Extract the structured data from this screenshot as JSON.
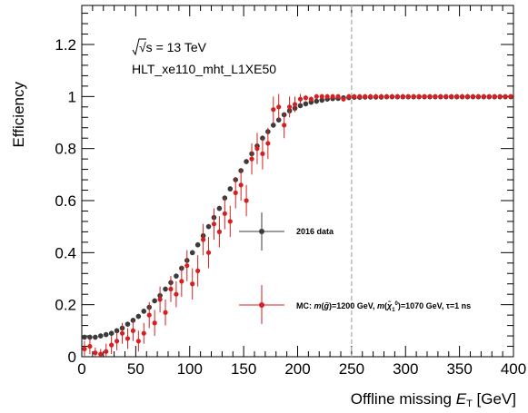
{
  "chart_data": {
    "type": "scatter",
    "xlabel_main": "Offline missing",
    "xlabel_sym": "E",
    "xlabel_sub": "T",
    "xlabel_unit": "[GeV]",
    "ylabel": "Efficiency",
    "xlim": [
      0,
      400
    ],
    "ylim": [
      0,
      1.35
    ],
    "x_ticks": [
      0,
      50,
      100,
      150,
      200,
      250,
      300,
      350,
      400
    ],
    "x_tick_labels": [
      "0",
      "50",
      "100",
      "150",
      "200",
      "250",
      "300",
      "350",
      "400"
    ],
    "y_ticks": [
      0,
      0.2,
      0.4,
      0.6,
      0.8,
      1,
      1.2
    ],
    "y_tick_labels": [
      "0",
      "0.2",
      "0.4",
      "0.6",
      "0.8",
      "1",
      "1.2"
    ],
    "annotations": {
      "energy": "√s = 13 TeV",
      "trigger": "HLT_xe110_mht_L1XE50"
    },
    "vertical_line": {
      "x": 250,
      "style": "dashed",
      "color": "#aaaaaa"
    },
    "legend": [
      {
        "label": "2016 data"
      },
      {
        "label": "MC: m(g̃)=1200 GeV, m(χ̃₁⁰)=1070 GeV, τ=1 ns"
      }
    ],
    "series": [
      {
        "name": "2016 data",
        "color": "#3b3b3b",
        "x": [
          2.5,
          7.5,
          12.5,
          17.5,
          22.5,
          27.5,
          32.5,
          37.5,
          42.5,
          47.5,
          52.5,
          57.5,
          62.5,
          67.5,
          72.5,
          77.5,
          82.5,
          87.5,
          92.5,
          97.5,
          102.5,
          107.5,
          112.5,
          117.5,
          122.5,
          127.5,
          132.5,
          137.5,
          142.5,
          147.5,
          152.5,
          157.5,
          162.5,
          167.5,
          172.5,
          177.5,
          182.5,
          187.5,
          192.5,
          197.5,
          202.5,
          207.5,
          212.5,
          217.5,
          222.5,
          227.5,
          232.5,
          237.5,
          242.5,
          247.5,
          252.5,
          257.5,
          262.5,
          267.5,
          272.5,
          277.5,
          282.5,
          287.5,
          292.5,
          297.5,
          302.5,
          307.5,
          312.5,
          317.5,
          322.5,
          327.5,
          332.5,
          337.5,
          342.5,
          347.5,
          352.5,
          357.5,
          362.5,
          367.5,
          372.5,
          377.5,
          382.5,
          387.5,
          392.5,
          397.5
        ],
        "y": [
          0.075,
          0.075,
          0.075,
          0.08,
          0.085,
          0.09,
          0.1,
          0.11,
          0.125,
          0.14,
          0.155,
          0.175,
          0.19,
          0.215,
          0.235,
          0.26,
          0.285,
          0.31,
          0.34,
          0.37,
          0.4,
          0.43,
          0.465,
          0.5,
          0.535,
          0.57,
          0.61,
          0.645,
          0.68,
          0.715,
          0.75,
          0.78,
          0.81,
          0.84,
          0.865,
          0.89,
          0.91,
          0.93,
          0.945,
          0.955,
          0.965,
          0.972,
          0.978,
          0.982,
          0.986,
          0.99,
          0.992,
          0.993,
          0.995,
          0.996,
          0.997,
          0.997,
          0.998,
          0.998,
          0.998,
          0.998,
          0.999,
          0.999,
          0.999,
          0.999,
          0.999,
          0.999,
          0.999,
          0.999,
          0.999,
          0.999,
          0.999,
          0.999,
          0.999,
          0.999,
          0.999,
          0.999,
          0.999,
          0.999,
          0.999,
          0.999,
          0.999,
          0.999,
          0.999,
          0.999
        ],
        "err": [
          0.01,
          0.01,
          0.01,
          0.01,
          0.01,
          0.01,
          0.01,
          0.01,
          0.01,
          0.01,
          0.01,
          0.01,
          0.01,
          0.01,
          0.01,
          0.01,
          0.01,
          0.01,
          0.01,
          0.01,
          0.01,
          0.01,
          0.01,
          0.01,
          0.01,
          0.01,
          0.01,
          0.01,
          0.01,
          0.01,
          0.01,
          0.01,
          0.01,
          0.01,
          0.01,
          0.01,
          0.01,
          0.01,
          0.01,
          0.01,
          0.01,
          0.01,
          0.01,
          0.01,
          0.01,
          0.01,
          0.01,
          0.01,
          0.01,
          0.01,
          0.01,
          0.01,
          0.01,
          0.01,
          0.01,
          0.01,
          0.01,
          0.01,
          0.01,
          0.01,
          0.01,
          0.01,
          0.01,
          0.01,
          0.01,
          0.01,
          0.01,
          0.01,
          0.01,
          0.01,
          0.01,
          0.01,
          0.01,
          0.01,
          0.01,
          0.01,
          0.01,
          0.01,
          0.01,
          0.01
        ]
      },
      {
        "name": "MC",
        "color": "#d42020",
        "x": [
          2.5,
          7.5,
          12.5,
          17.5,
          22.5,
          27.5,
          32.5,
          37.5,
          42.5,
          47.5,
          52.5,
          57.5,
          62.5,
          67.5,
          72.5,
          77.5,
          82.5,
          87.5,
          92.5,
          97.5,
          102.5,
          107.5,
          112.5,
          117.5,
          122.5,
          127.5,
          132.5,
          137.5,
          142.5,
          147.5,
          152.5,
          157.5,
          162.5,
          167.5,
          172.5,
          177.5,
          182.5,
          187.5,
          192.5,
          197.5,
          202.5,
          207.5,
          212.5,
          217.5,
          222.5,
          227.5,
          232.5,
          237.5,
          242.5,
          247.5,
          252.5,
          257.5,
          262.5,
          267.5,
          272.5,
          277.5,
          282.5,
          287.5,
          292.5,
          297.5,
          302.5,
          307.5,
          312.5,
          317.5,
          322.5,
          327.5,
          332.5,
          337.5,
          342.5,
          347.5,
          352.5,
          357.5,
          362.5,
          367.5,
          372.5,
          377.5,
          382.5,
          387.5,
          392.5,
          397.5
        ],
        "y": [
          0.03,
          0.04,
          0.015,
          0.01,
          0.02,
          0.045,
          0.06,
          0.09,
          0.07,
          0.1,
          0.06,
          0.09,
          0.16,
          0.13,
          0.22,
          0.17,
          0.26,
          0.24,
          0.29,
          0.35,
          0.28,
          0.33,
          0.45,
          0.4,
          0.51,
          0.48,
          0.55,
          0.52,
          0.63,
          0.66,
          0.6,
          0.76,
          0.8,
          0.78,
          0.82,
          0.95,
          0.96,
          0.89,
          0.96,
          0.97,
          0.99,
          0.995,
          0.99,
          1.0,
          1.0,
          1.0,
          1.0,
          1.0,
          0.99,
          1.0,
          1.0,
          1.0,
          1.0,
          1.0,
          1.0,
          1.0,
          1.0,
          1.0,
          1.0,
          1.0,
          1.0,
          1.0,
          1.0,
          1.0,
          1.0,
          1.0,
          1.0,
          1.0,
          1.0,
          1.0,
          1.0,
          1.0,
          1.0,
          1.0,
          1.0,
          1.0,
          1.0,
          1.0,
          1.0,
          1.0
        ],
        "err": [
          0.03,
          0.03,
          0.02,
          0.02,
          0.03,
          0.035,
          0.035,
          0.04,
          0.04,
          0.04,
          0.04,
          0.04,
          0.05,
          0.05,
          0.05,
          0.05,
          0.05,
          0.05,
          0.06,
          0.06,
          0.06,
          0.06,
          0.06,
          0.06,
          0.06,
          0.06,
          0.06,
          0.06,
          0.06,
          0.06,
          0.06,
          0.06,
          0.06,
          0.06,
          0.06,
          0.05,
          0.05,
          0.05,
          0.04,
          0.03,
          0.02,
          0.01,
          0.01,
          0.01,
          0.01,
          0.01,
          0.01,
          0.01,
          0.01,
          0.01,
          0.01,
          0.01,
          0.01,
          0.01,
          0.01,
          0.01,
          0.01,
          0.01,
          0.01,
          0.01,
          0.01,
          0.01,
          0.01,
          0.01,
          0.01,
          0.01,
          0.01,
          0.01,
          0.01,
          0.01,
          0.01,
          0.01,
          0.01,
          0.01,
          0.01,
          0.01,
          0.01,
          0.01,
          0.01,
          0.01
        ]
      }
    ]
  }
}
